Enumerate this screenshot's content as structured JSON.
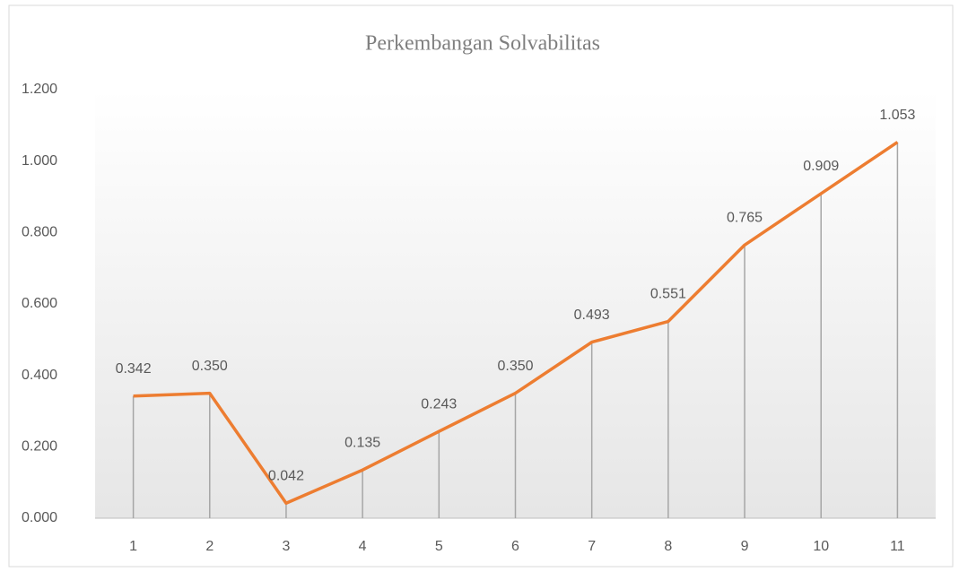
{
  "chart_data": {
    "type": "line",
    "title": "Perkembangan  Solvabilitas",
    "categories": [
      "1",
      "2",
      "3",
      "4",
      "5",
      "6",
      "7",
      "8",
      "9",
      "10",
      "11"
    ],
    "series": [
      {
        "name": "Solvabilitas",
        "color": "#ed7d31",
        "values": [
          0.342,
          0.35,
          0.042,
          0.135,
          0.243,
          0.35,
          0.493,
          0.551,
          0.765,
          0.909,
          1.053
        ],
        "value_labels": [
          "0.342",
          "0.350",
          "0.042",
          "0.135",
          "0.243",
          "0.350",
          "0.493",
          "0.551",
          "0.765",
          "0.909",
          "1.053"
        ]
      }
    ],
    "ylim": [
      0,
      1.2
    ],
    "yticks": [
      {
        "value": 0,
        "label": "0.000"
      },
      {
        "value": 0.2,
        "label": "0.200"
      },
      {
        "value": 0.4,
        "label": "0.400"
      },
      {
        "value": 0.6,
        "label": "0.600"
      },
      {
        "value": 0.8,
        "label": "0.800"
      },
      {
        "value": 1.0,
        "label": "1.000"
      },
      {
        "value": 1.2,
        "label": "1.200"
      }
    ],
    "drop_lines": true,
    "grid": false
  }
}
